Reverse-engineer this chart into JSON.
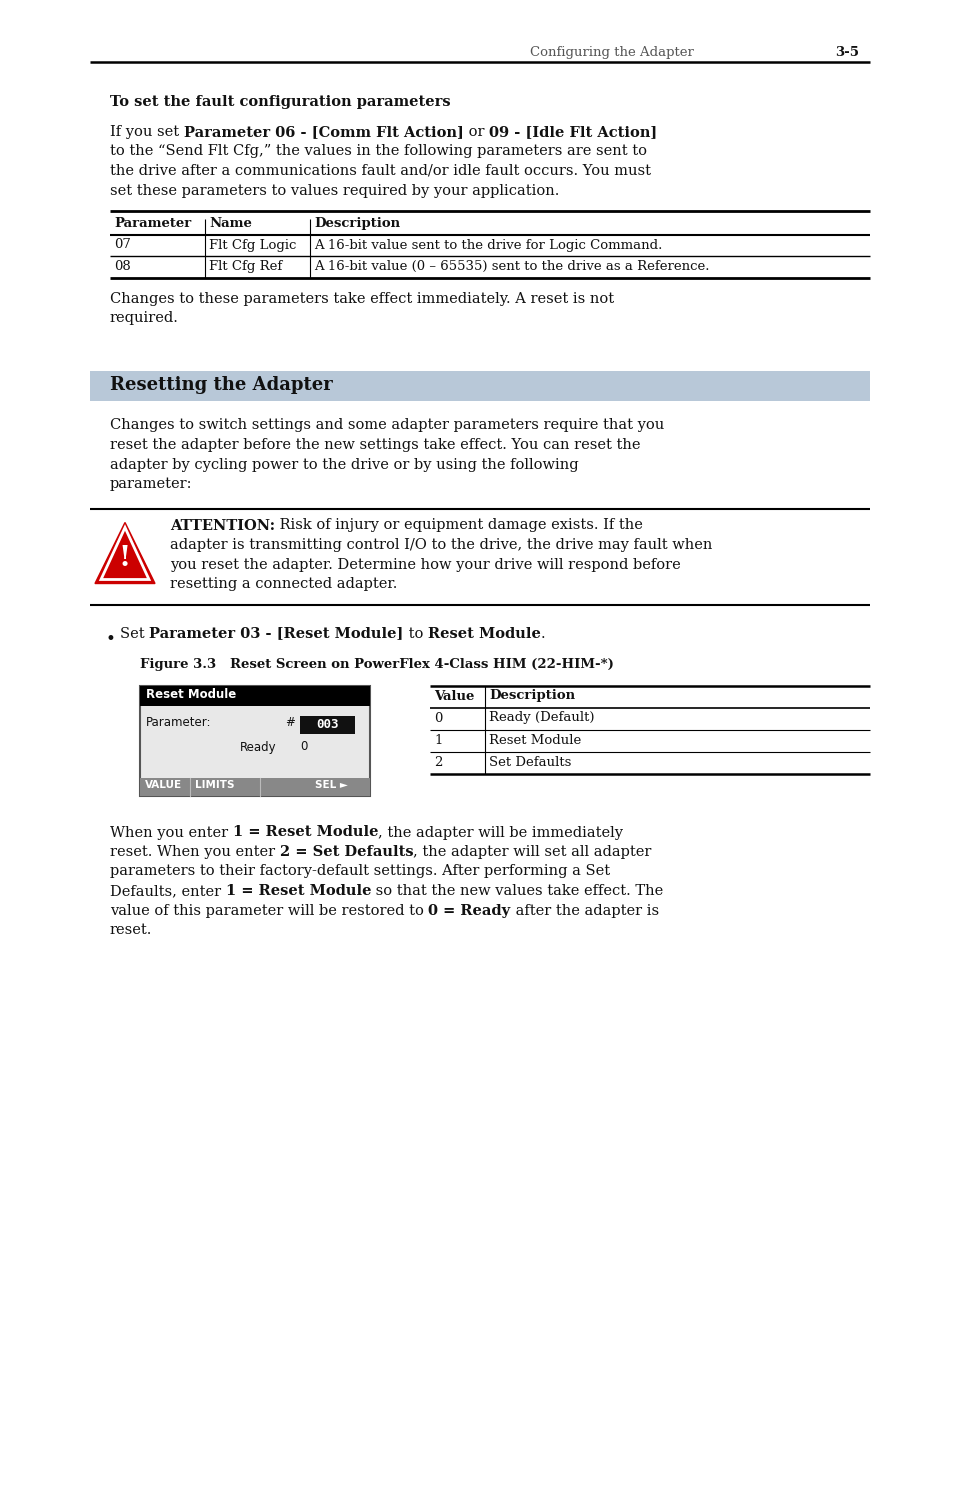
{
  "header_text": "Configuring the Adapter",
  "header_page": "3-5",
  "section1_title": "To set the fault configuration parameters",
  "table1_headers": [
    "Parameter",
    "Name",
    "Description"
  ],
  "table1_rows": [
    [
      "07",
      "Flt Cfg Logic",
      "A 16-bit value sent to the drive for Logic Command."
    ],
    [
      "08",
      "Flt Cfg Ref",
      "A 16-bit value (0 – 65535) sent to the drive as a Reference."
    ]
  ],
  "after_table1_line1": "Changes to these parameters take effect immediately. A reset is not",
  "after_table1_line2": "required.",
  "section2_title": "Resetting the Adapter",
  "section2_body": [
    "Changes to switch settings and some adapter parameters require that you",
    "reset the adapter before the new settings take effect. You can reset the",
    "adapter by cycling power to the drive or by using the following",
    "parameter:"
  ],
  "attention_title": "ATTENTION:",
  "attention_lines": [
    " Risk of injury or equipment damage exists. If the",
    "adapter is transmitting control I/O to the drive, the drive may fault when",
    "you reset the adapter. Determine how your drive will respond before",
    "resetting a connected adapter."
  ],
  "him_title": "Reset Module",
  "him_label1": "Parameter:",
  "him_label2": "#",
  "him_value": "003",
  "him_ready": "Ready",
  "him_zero": "0",
  "him_bottom1": "VALUE",
  "him_bottom2": "LIMITS",
  "him_bottom3": "SEL ►",
  "table2_rows": [
    [
      "0",
      "Ready (Default)"
    ],
    [
      "1",
      "Reset Module"
    ],
    [
      "2",
      "Set Defaults"
    ]
  ],
  "figure_caption": "Figure 3.3   Reset Screen on PowerFlex 4-Class HIM (22-HIM-*)",
  "final_lines": [
    [
      [
        "When you enter ",
        false
      ],
      [
        "1 = Reset Module",
        true
      ],
      [
        ", the adapter will be immediately",
        false
      ]
    ],
    [
      [
        "reset. When you enter ",
        false
      ],
      [
        "2 = Set Defaults",
        true
      ],
      [
        ", the adapter will set all adapter",
        false
      ]
    ],
    [
      [
        "parameters to their factory-default settings. After performing a Set",
        false
      ]
    ],
    [
      [
        "Defaults, enter ",
        false
      ],
      [
        "1 = Reset Module",
        true
      ],
      [
        " so that the new values take effect. The",
        false
      ]
    ],
    [
      [
        "value of this parameter will be restored to ",
        false
      ],
      [
        "0 = Ready",
        true
      ],
      [
        " after the adapter is",
        false
      ]
    ],
    [
      [
        "reset.",
        false
      ]
    ]
  ],
  "bg_color": "#ffffff",
  "section2_bar_color": "#b8c8d8",
  "line_color": "#000000",
  "text_color": "#111111",
  "him_title_bar_color": "#000000",
  "him_body_bg": "#f5f5f5",
  "him_bottom_bar_color": "#888888",
  "him_val_box_color": "#111111"
}
